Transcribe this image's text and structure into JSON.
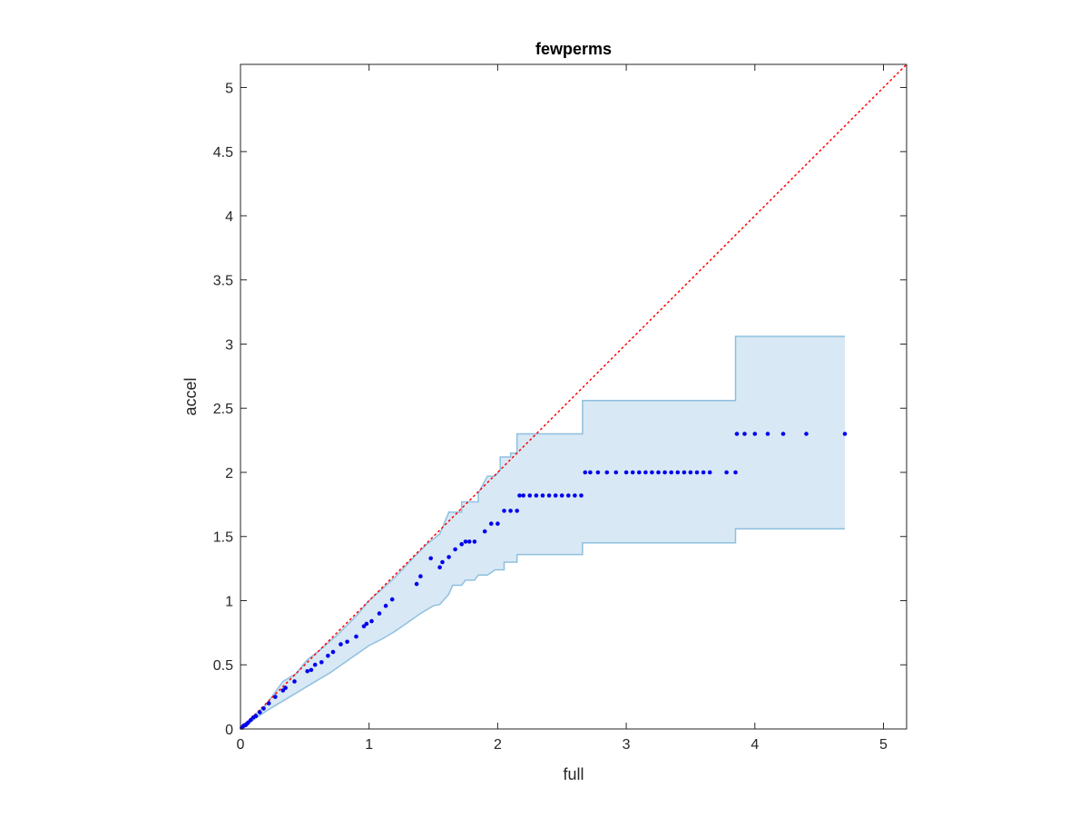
{
  "chart_data": {
    "type": "scatter",
    "title": "fewperms",
    "xlabel": "full",
    "ylabel": "accel",
    "xlim": [
      0,
      5.18
    ],
    "ylim": [
      0,
      5.18
    ],
    "xticks": [
      0,
      1,
      2,
      3,
      4,
      5
    ],
    "yticks": [
      0,
      0.5,
      1,
      1.5,
      2,
      2.5,
      3,
      3.5,
      4,
      4.5,
      5
    ],
    "xtick_labels": [
      "0",
      "1",
      "2",
      "3",
      "4",
      "5"
    ],
    "ytick_labels": [
      "0",
      "0.5",
      "1",
      "1.5",
      "2",
      "2.5",
      "3",
      "3.5",
      "4",
      "4.5",
      "5"
    ],
    "grid": false,
    "colors": {
      "points": "#0000ee",
      "band_fill": "#d8e8f4",
      "band_edge": "#8fc0e0",
      "reference": "#ff0000",
      "axes": "#262626"
    },
    "reference_line": {
      "style": "dotted",
      "x": [
        0,
        5.18
      ],
      "y": [
        0,
        5.18
      ]
    },
    "band": {
      "upper": [
        [
          0,
          0
        ],
        [
          0.1,
          0.1
        ],
        [
          0.2,
          0.19
        ],
        [
          0.33,
          0.37
        ],
        [
          0.43,
          0.43
        ],
        [
          0.52,
          0.54
        ],
        [
          0.6,
          0.6
        ],
        [
          0.75,
          0.73
        ],
        [
          0.9,
          0.88
        ],
        [
          1.0,
          1.0
        ],
        [
          1.1,
          1.09
        ],
        [
          1.2,
          1.18
        ],
        [
          1.35,
          1.34
        ],
        [
          1.45,
          1.44
        ],
        [
          1.55,
          1.52
        ],
        [
          1.62,
          1.69
        ],
        [
          1.72,
          1.69
        ],
        [
          1.72,
          1.77
        ],
        [
          1.85,
          1.77
        ],
        [
          1.85,
          1.84
        ],
        [
          1.92,
          1.97
        ],
        [
          1.98,
          1.97
        ],
        [
          2.02,
          2.02
        ],
        [
          2.02,
          2.12
        ],
        [
          2.1,
          2.12
        ],
        [
          2.1,
          2.15
        ],
        [
          2.15,
          2.15
        ],
        [
          2.15,
          2.3
        ],
        [
          2.66,
          2.3
        ],
        [
          2.66,
          2.56
        ],
        [
          3.85,
          2.56
        ],
        [
          3.85,
          3.06
        ],
        [
          4.7,
          3.06
        ]
      ],
      "lower": [
        [
          0,
          0
        ],
        [
          0.1,
          0.07
        ],
        [
          0.2,
          0.14
        ],
        [
          0.3,
          0.2
        ],
        [
          0.4,
          0.26
        ],
        [
          0.5,
          0.32
        ],
        [
          0.6,
          0.38
        ],
        [
          0.7,
          0.44
        ],
        [
          0.8,
          0.51
        ],
        [
          0.9,
          0.58
        ],
        [
          1.0,
          0.65
        ],
        [
          1.1,
          0.7
        ],
        [
          1.2,
          0.76
        ],
        [
          1.3,
          0.83
        ],
        [
          1.4,
          0.9
        ],
        [
          1.5,
          0.96
        ],
        [
          1.55,
          0.97
        ],
        [
          1.62,
          1.05
        ],
        [
          1.65,
          1.12
        ],
        [
          1.72,
          1.12
        ],
        [
          1.75,
          1.16
        ],
        [
          1.82,
          1.16
        ],
        [
          1.85,
          1.2
        ],
        [
          1.92,
          1.2
        ],
        [
          1.98,
          1.24
        ],
        [
          2.05,
          1.24
        ],
        [
          2.05,
          1.3
        ],
        [
          2.15,
          1.3
        ],
        [
          2.15,
          1.36
        ],
        [
          2.66,
          1.36
        ],
        [
          2.66,
          1.45
        ],
        [
          3.85,
          1.45
        ],
        [
          3.85,
          1.56
        ],
        [
          4.7,
          1.56
        ]
      ]
    },
    "points": [
      [
        0.01,
        0.01
      ],
      [
        0.02,
        0.02
      ],
      [
        0.03,
        0.03
      ],
      [
        0.04,
        0.03
      ],
      [
        0.05,
        0.04
      ],
      [
        0.06,
        0.05
      ],
      [
        0.08,
        0.07
      ],
      [
        0.1,
        0.09
      ],
      [
        0.12,
        0.1
      ],
      [
        0.15,
        0.13
      ],
      [
        0.18,
        0.16
      ],
      [
        0.22,
        0.2
      ],
      [
        0.27,
        0.25
      ],
      [
        0.33,
        0.3
      ],
      [
        0.35,
        0.32
      ],
      [
        0.42,
        0.37
      ],
      [
        0.52,
        0.45
      ],
      [
        0.55,
        0.46
      ],
      [
        0.58,
        0.5
      ],
      [
        0.63,
        0.52
      ],
      [
        0.68,
        0.57
      ],
      [
        0.72,
        0.6
      ],
      [
        0.78,
        0.66
      ],
      [
        0.83,
        0.68
      ],
      [
        0.9,
        0.72
      ],
      [
        0.96,
        0.8
      ],
      [
        0.98,
        0.82
      ],
      [
        1.02,
        0.84
      ],
      [
        1.08,
        0.9
      ],
      [
        1.13,
        0.96
      ],
      [
        1.18,
        1.01
      ],
      [
        1.37,
        1.13
      ],
      [
        1.4,
        1.19
      ],
      [
        1.48,
        1.33
      ],
      [
        1.55,
        1.26
      ],
      [
        1.57,
        1.3
      ],
      [
        1.62,
        1.34
      ],
      [
        1.67,
        1.4
      ],
      [
        1.72,
        1.44
      ],
      [
        1.75,
        1.46
      ],
      [
        1.78,
        1.46
      ],
      [
        1.82,
        1.46
      ],
      [
        1.9,
        1.54
      ],
      [
        1.95,
        1.6
      ],
      [
        2.0,
        1.6
      ],
      [
        2.05,
        1.7
      ],
      [
        2.1,
        1.7
      ],
      [
        2.15,
        1.7
      ],
      [
        2.17,
        1.82
      ],
      [
        2.2,
        1.82
      ],
      [
        2.25,
        1.82
      ],
      [
        2.3,
        1.82
      ],
      [
        2.35,
        1.82
      ],
      [
        2.4,
        1.82
      ],
      [
        2.45,
        1.82
      ],
      [
        2.5,
        1.82
      ],
      [
        2.55,
        1.82
      ],
      [
        2.6,
        1.82
      ],
      [
        2.65,
        1.82
      ],
      [
        2.68,
        2.0
      ],
      [
        2.72,
        2.0
      ],
      [
        2.78,
        2.0
      ],
      [
        2.85,
        2.0
      ],
      [
        2.92,
        2.0
      ],
      [
        3.0,
        2.0
      ],
      [
        3.05,
        2.0
      ],
      [
        3.1,
        2.0
      ],
      [
        3.15,
        2.0
      ],
      [
        3.2,
        2.0
      ],
      [
        3.25,
        2.0
      ],
      [
        3.3,
        2.0
      ],
      [
        3.35,
        2.0
      ],
      [
        3.4,
        2.0
      ],
      [
        3.45,
        2.0
      ],
      [
        3.5,
        2.0
      ],
      [
        3.55,
        2.0
      ],
      [
        3.6,
        2.0
      ],
      [
        3.65,
        2.0
      ],
      [
        3.78,
        2.0
      ],
      [
        3.85,
        2.0
      ],
      [
        3.86,
        2.3
      ],
      [
        3.92,
        2.3
      ],
      [
        4.0,
        2.3
      ],
      [
        4.1,
        2.3
      ],
      [
        4.22,
        2.3
      ],
      [
        4.4,
        2.3
      ],
      [
        4.7,
        2.3
      ]
    ]
  }
}
